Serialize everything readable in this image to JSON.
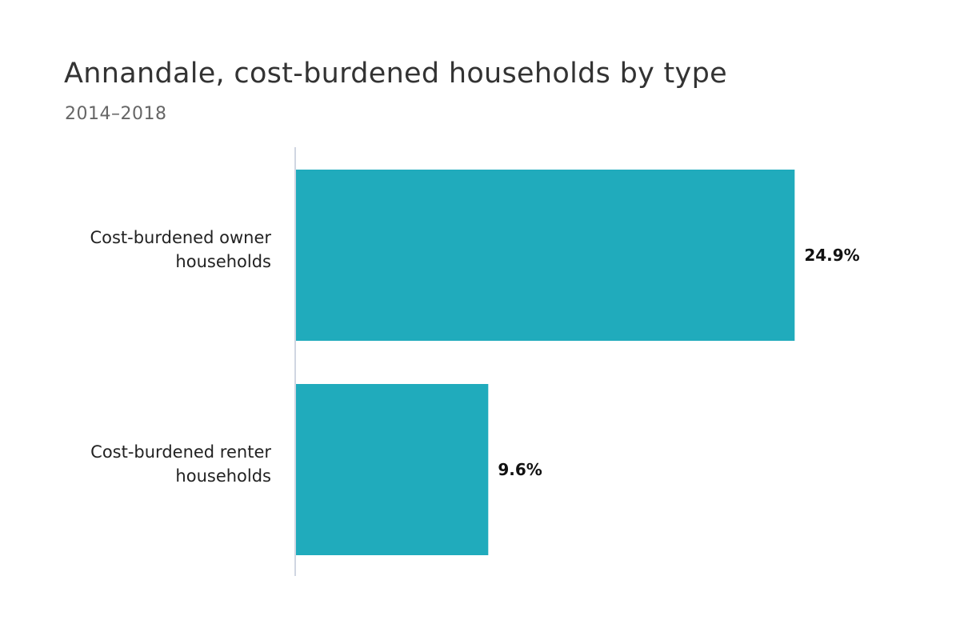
{
  "chart_data": {
    "type": "bar",
    "orientation": "horizontal",
    "title": "Annandale, cost-burdened households by type",
    "subtitle": "2014–2018",
    "categories": [
      [
        "Cost-burdened owner",
        "households"
      ],
      [
        "Cost-burdened renter",
        "households"
      ]
    ],
    "values": [
      24.9,
      9.6
    ],
    "value_labels": [
      "24.9%",
      "9.6%"
    ],
    "xlim": [
      0,
      30
    ],
    "xlabel": "",
    "ylabel": "",
    "grid": false,
    "legend": "none",
    "bar_color": "#20ABBC",
    "axis_color": "#C0C8D8"
  }
}
